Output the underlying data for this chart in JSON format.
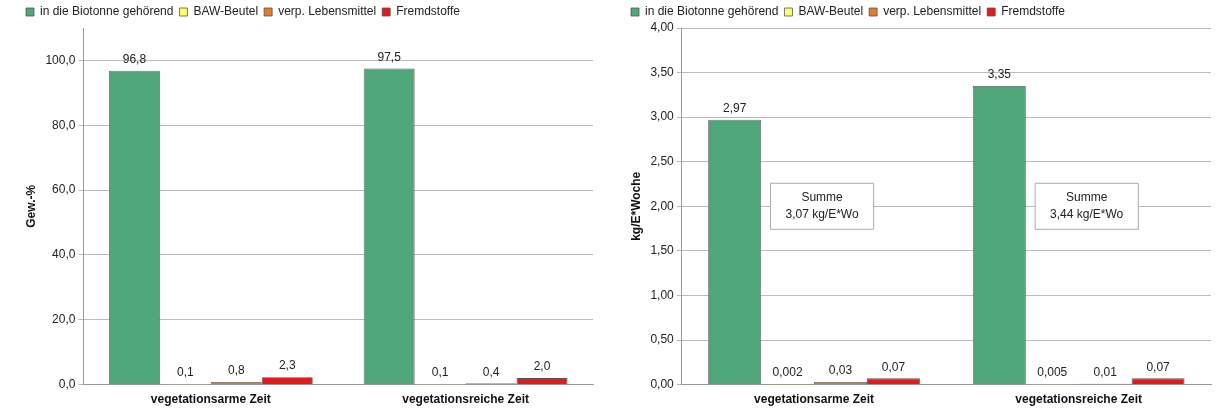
{
  "chart_data": [
    {
      "type": "bar",
      "ylabel": "Gew.-%",
      "categories": [
        "vegetationsarme Zeit",
        "vegetationsreiche Zeit"
      ],
      "ylim": [
        0,
        110
      ],
      "yticks": [
        {
          "value": 0,
          "label": "0,0"
        },
        {
          "value": 20,
          "label": "20,0"
        },
        {
          "value": 40,
          "label": "40,0"
        },
        {
          "value": 60,
          "label": "60,0"
        },
        {
          "value": 80,
          "label": "80,0"
        },
        {
          "value": 100,
          "label": "100,0"
        }
      ],
      "grid": "y",
      "legend": "top",
      "series": [
        {
          "name": "in die Biotonne gehörend",
          "color": "#4ea67a",
          "values": [
            96.8,
            97.5
          ],
          "value_labels": [
            "96,8",
            "97,5"
          ]
        },
        {
          "name": "BAW-Beutel",
          "color": "#ffff66",
          "values": [
            0.1,
            0.1
          ],
          "value_labels": [
            "0,1",
            "0,1"
          ]
        },
        {
          "name": "verp. Lebensmittel",
          "color": "#e07b28",
          "values": [
            0.8,
            0.4
          ],
          "value_labels": [
            "0,8",
            "0,4"
          ]
        },
        {
          "name": "Fremdstoffe",
          "color": "#e31a1c",
          "values": [
            2.3,
            2.0
          ],
          "value_labels": [
            "2,3",
            "2,0"
          ]
        }
      ]
    },
    {
      "type": "bar",
      "ylabel": "kg/E*Woche",
      "categories": [
        "vegetationsarme Zeit",
        "vegetationsreiche Zeit"
      ],
      "ylim": [
        0,
        4
      ],
      "yticks": [
        {
          "value": 0,
          "label": "0,00"
        },
        {
          "value": 0.5,
          "label": "0,50"
        },
        {
          "value": 1,
          "label": "1,00"
        },
        {
          "value": 1.5,
          "label": "1,50"
        },
        {
          "value": 2,
          "label": "2,00"
        },
        {
          "value": 2.5,
          "label": "2,50"
        },
        {
          "value": 3,
          "label": "3,00"
        },
        {
          "value": 3.5,
          "label": "3,50"
        },
        {
          "value": 4,
          "label": "4,00"
        }
      ],
      "grid": "y",
      "legend": "top",
      "annotations": [
        "Summe\n3,07 kg/E*Wo",
        "Summe\n3,44 kg/E*Wo"
      ],
      "series": [
        {
          "name": "in die Biotonne gehörend",
          "color": "#4ea67a",
          "values": [
            2.97,
            3.35
          ],
          "value_labels": [
            "2,97",
            "3,35"
          ]
        },
        {
          "name": "BAW-Beutel",
          "color": "#ffff66",
          "values": [
            0.002,
            0.005
          ],
          "value_labels": [
            "0,002",
            "0,005"
          ]
        },
        {
          "name": "verp. Lebensmittel",
          "color": "#e07b28",
          "values": [
            0.03,
            0.01
          ],
          "value_labels": [
            "0,03",
            "0,01"
          ]
        },
        {
          "name": "Fremdstoffe",
          "color": "#e31a1c",
          "values": [
            0.07,
            0.07
          ],
          "value_labels": [
            "0,07",
            "0,07"
          ]
        }
      ]
    }
  ]
}
